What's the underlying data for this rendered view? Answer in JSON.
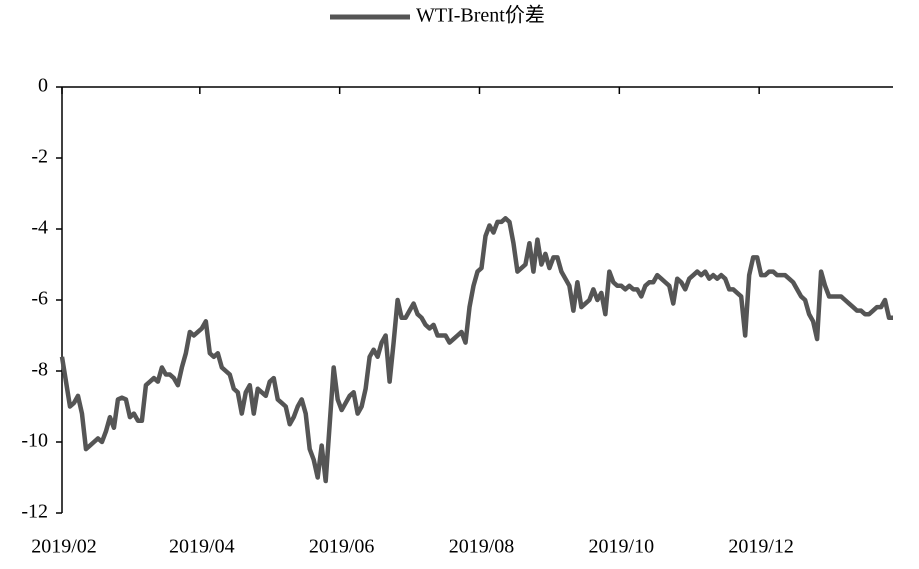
{
  "chart_data": {
    "type": "line",
    "series": [
      {
        "name": "WTI-Brent价差",
        "color": "#555555",
        "values": [
          -7.6,
          -8.3,
          -9.0,
          -8.9,
          -8.7,
          -9.2,
          -10.2,
          -10.1,
          -10.0,
          -9.9,
          -10.0,
          -9.7,
          -9.3,
          -9.6,
          -8.8,
          -8.75,
          -8.8,
          -9.3,
          -9.2,
          -9.4,
          -9.4,
          -8.4,
          -8.3,
          -8.2,
          -8.3,
          -7.9,
          -8.1,
          -8.1,
          -8.2,
          -8.4,
          -7.9,
          -7.5,
          -6.9,
          -7.0,
          -6.9,
          -6.8,
          -6.6,
          -7.5,
          -7.6,
          -7.5,
          -7.9,
          -8.0,
          -8.1,
          -8.5,
          -8.6,
          -9.2,
          -8.6,
          -8.4,
          -9.2,
          -8.5,
          -8.6,
          -8.7,
          -8.3,
          -8.2,
          -8.8,
          -8.9,
          -9.0,
          -9.5,
          -9.3,
          -9.0,
          -8.8,
          -9.2,
          -10.2,
          -10.5,
          -11.0,
          -10.1,
          -11.1,
          -9.5,
          -7.9,
          -8.8,
          -9.1,
          -8.9,
          -8.7,
          -8.6,
          -9.2,
          -9.0,
          -8.5,
          -7.6,
          -7.4,
          -7.6,
          -7.2,
          -7.0,
          -8.3,
          -7.2,
          -6.0,
          -6.5,
          -6.5,
          -6.3,
          -6.1,
          -6.4,
          -6.5,
          -6.7,
          -6.8,
          -6.7,
          -7.0,
          -7.0,
          -7.0,
          -7.2,
          -7.1,
          -7.0,
          -6.9,
          -7.2,
          -6.2,
          -5.6,
          -5.2,
          -5.1,
          -4.2,
          -3.9,
          -4.1,
          -3.8,
          -3.8,
          -3.7,
          -3.8,
          -4.4,
          -5.2,
          -5.1,
          -5.0,
          -4.4,
          -5.2,
          -4.3,
          -5.0,
          -4.7,
          -5.1,
          -4.8,
          -4.8,
          -5.2,
          -5.4,
          -5.6,
          -6.3,
          -5.5,
          -6.2,
          -6.1,
          -6.0,
          -5.7,
          -6.0,
          -5.8,
          -6.4,
          -5.2,
          -5.5,
          -5.6,
          -5.6,
          -5.7,
          -5.6,
          -5.7,
          -5.7,
          -5.9,
          -5.6,
          -5.5,
          -5.5,
          -5.3,
          -5.4,
          -5.5,
          -5.6,
          -6.1,
          -5.4,
          -5.5,
          -5.7,
          -5.4,
          -5.3,
          -5.2,
          -5.3,
          -5.2,
          -5.4,
          -5.3,
          -5.4,
          -5.3,
          -5.4,
          -5.7,
          -5.7,
          -5.8,
          -5.9,
          -7.0,
          -5.3,
          -4.8,
          -4.8,
          -5.3,
          -5.3,
          -5.2,
          -5.2,
          -5.3,
          -5.3,
          -5.3,
          -5.4,
          -5.5,
          -5.7,
          -5.9,
          -6.0,
          -6.4,
          -6.6,
          -7.1,
          -5.2,
          -5.6,
          -5.9,
          -5.9,
          -5.9,
          -5.9,
          -6.0,
          -6.1,
          -6.2,
          -6.3,
          -6.3,
          -6.4,
          -6.4,
          -6.3,
          -6.2,
          -6.2,
          -6.0,
          -6.5,
          -6.5
        ]
      }
    ],
    "xlim": [
      0,
      208
    ],
    "xticks": [
      {
        "value": 0,
        "label": "2019/02"
      },
      {
        "value": 34.5,
        "label": "2019/04"
      },
      {
        "value": 69.5,
        "label": "2019/06"
      },
      {
        "value": 104.5,
        "label": "2019/08"
      },
      {
        "value": 139.5,
        "label": "2019/10"
      },
      {
        "value": 174.5,
        "label": "2019/12"
      }
    ],
    "ylim": [
      -12,
      0
    ],
    "yticks": [
      0,
      -2,
      -4,
      -6,
      -8,
      -10,
      -12
    ],
    "legend": "top"
  }
}
